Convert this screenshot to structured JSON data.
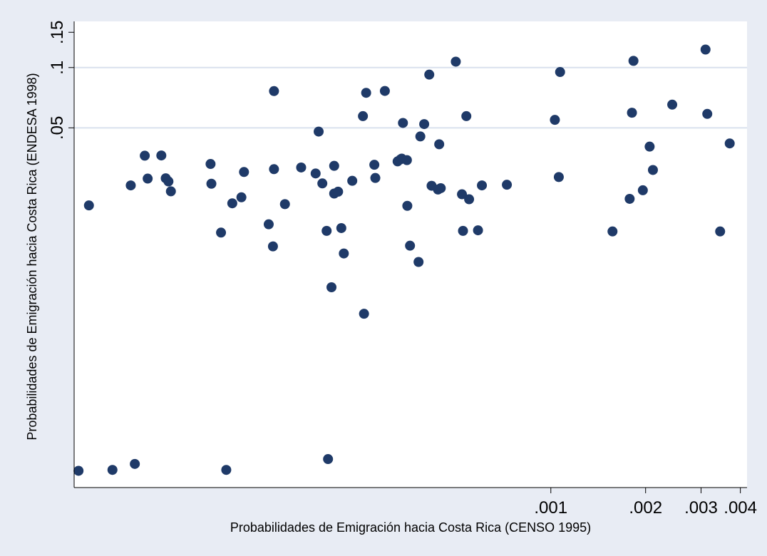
{
  "chart_data": {
    "type": "scatter",
    "title": "",
    "xlabel": "Probabilidades de Emigración hacia Costa Rica (CENSO 1995)",
    "ylabel": "Probabilidades de Emigración hacia Costa Rica (ENDESA 1998)",
    "x_scale": "log",
    "y_scale": "log",
    "xlim": [
      3.06e-05,
      0.0042
    ],
    "ylim": [
      0.0008,
      0.17
    ],
    "x_ticks": [
      {
        "value": 0.001,
        "label": ".001"
      },
      {
        "value": 0.002,
        "label": ".002"
      },
      {
        "value": 0.003,
        "label": ".003"
      },
      {
        "value": 0.004,
        "label": ".004"
      }
    ],
    "y_ticks": [
      {
        "value": 0.05,
        "label": ".05"
      },
      {
        "value": 0.1,
        "label": ".1"
      },
      {
        "value": 0.15,
        "label": ".15"
      }
    ],
    "grid": "y-major",
    "legend": "none",
    "colors": {
      "background": "#e8ecf4",
      "plot": "#ffffff",
      "marker": "#1f3a68",
      "grid": "#d9e1ee"
    },
    "points": [
      [
        3.16e-05,
        0.00097
      ],
      [
        3.41e-05,
        0.0205
      ],
      [
        4.05e-05,
        0.00098
      ],
      [
        4.63e-05,
        0.0258
      ],
      [
        4.77e-05,
        0.00105
      ],
      [
        5.13e-05,
        0.0363
      ],
      [
        5.24e-05,
        0.0279
      ],
      [
        5.79e-05,
        0.0364
      ],
      [
        5.98e-05,
        0.028
      ],
      [
        6.21e-05,
        0.0241
      ],
      [
        6.1e-05,
        0.027
      ],
      [
        8.3e-05,
        0.033
      ],
      [
        8.35e-05,
        0.0263
      ],
      [
        8.96e-05,
        0.015
      ],
      [
        9.31e-05,
        0.00098
      ],
      [
        9.73e-05,
        0.021
      ],
      [
        0.000104,
        0.0225
      ],
      [
        0.000106,
        0.0301
      ],
      [
        0.000127,
        0.0165
      ],
      [
        0.000132,
        0.0763
      ],
      [
        0.000131,
        0.0128
      ],
      [
        0.000132,
        0.0311
      ],
      [
        0.000143,
        0.0208
      ],
      [
        0.000161,
        0.0317
      ],
      [
        0.000179,
        0.0296
      ],
      [
        0.000183,
        0.0479
      ],
      [
        0.000188,
        0.0264
      ],
      [
        0.000194,
        0.0153
      ],
      [
        0.000196,
        0.00111
      ],
      [
        0.000201,
        0.008
      ],
      [
        0.000205,
        0.0235
      ],
      [
        0.000205,
        0.0323
      ],
      [
        0.000211,
        0.024
      ],
      [
        0.000216,
        0.0158
      ],
      [
        0.00022,
        0.0118
      ],
      [
        0.000234,
        0.0272
      ],
      [
        0.000255,
        0.0059
      ],
      [
        0.000253,
        0.0572
      ],
      [
        0.000259,
        0.0748
      ],
      [
        0.000275,
        0.0327
      ],
      [
        0.000277,
        0.0281
      ],
      [
        0.000297,
        0.0764
      ],
      [
        0.000326,
        0.034
      ],
      [
        0.000333,
        0.0348
      ],
      [
        0.000336,
        0.0351
      ],
      [
        0.000339,
        0.0529
      ],
      [
        0.000349,
        0.0345
      ],
      [
        0.00035,
        0.0204
      ],
      [
        0.000357,
        0.0129
      ],
      [
        0.00038,
        0.0107
      ],
      [
        0.000385,
        0.0453
      ],
      [
        0.000396,
        0.0522
      ],
      [
        0.000411,
        0.0922
      ],
      [
        0.000418,
        0.0257
      ],
      [
        0.000438,
        0.0246
      ],
      [
        0.000442,
        0.0414
      ],
      [
        0.000447,
        0.025
      ],
      [
        0.000499,
        0.107
      ],
      [
        0.000522,
        0.0233
      ],
      [
        0.000526,
        0.0153
      ],
      [
        0.000539,
        0.0572
      ],
      [
        0.00055,
        0.022
      ],
      [
        0.000587,
        0.0154
      ],
      [
        0.000604,
        0.0258
      ],
      [
        0.000725,
        0.026
      ],
      [
        0.00103,
        0.0548
      ],
      [
        0.00107,
        0.095
      ],
      [
        0.00106,
        0.0284
      ],
      [
        0.00157,
        0.0152
      ],
      [
        0.00178,
        0.0221
      ],
      [
        0.00181,
        0.0595
      ],
      [
        0.00183,
        0.108
      ],
      [
        0.00196,
        0.0244
      ],
      [
        0.00206,
        0.0403
      ],
      [
        0.00211,
        0.0308
      ],
      [
        0.00243,
        0.0653
      ],
      [
        0.0031,
        0.123
      ],
      [
        0.00314,
        0.0587
      ],
      [
        0.00345,
        0.0152
      ],
      [
        0.0037,
        0.0418
      ]
    ]
  }
}
